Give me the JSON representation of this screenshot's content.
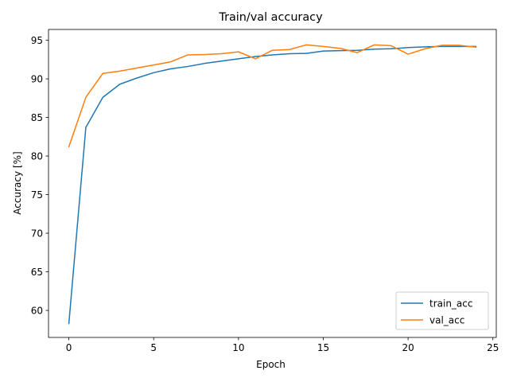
{
  "chart_data": {
    "type": "line",
    "title": "Train/val accuracy",
    "xlabel": "Epoch",
    "ylabel": "Accuracy [%]",
    "xlim": [
      -1.2,
      25.2
    ],
    "ylim": [
      56.5,
      96.4
    ],
    "xticks": [
      0,
      5,
      10,
      15,
      20,
      25
    ],
    "yticks": [
      60,
      65,
      70,
      75,
      80,
      85,
      90,
      95
    ],
    "grid": false,
    "legend_position": "lower right",
    "x": [
      0,
      1,
      2,
      3,
      4,
      5,
      6,
      7,
      8,
      9,
      10,
      11,
      12,
      13,
      14,
      15,
      16,
      17,
      18,
      19,
      20,
      21,
      22,
      23,
      24
    ],
    "series": [
      {
        "name": "train_acc",
        "color": "#1f77b4",
        "values": [
          58.3,
          83.7,
          87.6,
          89.3,
          90.1,
          90.8,
          91.3,
          91.6,
          92.0,
          92.3,
          92.6,
          92.9,
          93.1,
          93.25,
          93.3,
          93.6,
          93.65,
          93.7,
          93.85,
          93.9,
          94.05,
          94.15,
          94.2,
          94.2,
          94.2
        ]
      },
      {
        "name": "val_acc",
        "color": "#ff7f0e",
        "values": [
          81.2,
          87.6,
          90.7,
          91.0,
          91.4,
          91.8,
          92.2,
          93.1,
          93.15,
          93.25,
          93.5,
          92.6,
          93.7,
          93.8,
          94.4,
          94.2,
          93.95,
          93.4,
          94.4,
          94.3,
          93.2,
          93.9,
          94.35,
          94.35,
          94.1
        ]
      }
    ]
  }
}
